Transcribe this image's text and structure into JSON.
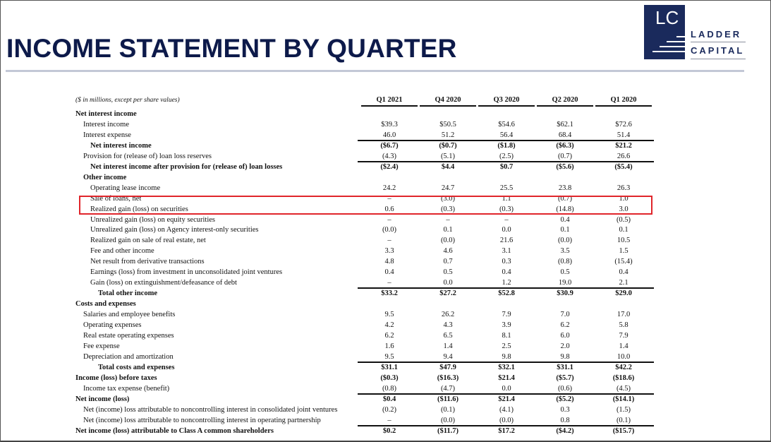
{
  "title": "INCOME STATEMENT BY QUARTER",
  "logo": {
    "mark": "LC",
    "line1": "LADDER",
    "line2": "CAPITAL",
    "brand_color": "#1a2a5c"
  },
  "table": {
    "units_note": "($ in millions, except per share values)",
    "columns": [
      "Q1 2021",
      "Q4 2020",
      "Q3 2020",
      "Q2 2020",
      "Q1 2020"
    ],
    "rows": [
      {
        "label": "Net interest income",
        "style": "section",
        "values": [
          "",
          "",
          "",
          "",
          ""
        ]
      },
      {
        "label": "Interest income",
        "style": "item",
        "values": [
          "$39.3",
          "$50.5",
          "$54.6",
          "$62.1",
          "$72.6"
        ]
      },
      {
        "label": "Interest expense",
        "style": "item",
        "values": [
          "46.0",
          "51.2",
          "56.4",
          "68.4",
          "51.4"
        ]
      },
      {
        "label": "Net interest income",
        "style": "subtotal",
        "values": [
          "($6.7)",
          "($0.7)",
          "($1.8)",
          "($6.3)",
          "$21.2"
        ]
      },
      {
        "label": "Provision for (release of) loan loss reserves",
        "style": "item",
        "values": [
          "(4.3)",
          "(5.1)",
          "(2.5)",
          "(0.7)",
          "26.6"
        ]
      },
      {
        "label": "Net interest income after provision for (release of) loan losses",
        "style": "subtotal",
        "values": [
          "($2.4)",
          "$4.4",
          "$0.7",
          "($5.6)",
          "($5.4)"
        ]
      },
      {
        "label": "Other income",
        "style": "section-indent",
        "values": [
          "",
          "",
          "",
          "",
          ""
        ]
      },
      {
        "label": "Operating lease income",
        "style": "item2",
        "values": [
          "24.2",
          "24.7",
          "25.5",
          "23.8",
          "26.3"
        ]
      },
      {
        "label": "Sale of loans, net",
        "style": "item2",
        "values": [
          "–",
          "(3.0)",
          "1.1",
          "(0.7)",
          "1.0"
        ]
      },
      {
        "label": "Realized gain (loss) on securities",
        "style": "item2",
        "values": [
          "0.6",
          "(0.3)",
          "(0.3)",
          "(14.8)",
          "3.0"
        ]
      },
      {
        "label": "Unrealized gain (loss) on equity securities",
        "style": "item2",
        "values": [
          "–",
          "–",
          "–",
          "0.4",
          "(0.5)"
        ]
      },
      {
        "label": "Unrealized gain (loss) on Agency interest-only securities",
        "style": "item2",
        "values": [
          "(0.0)",
          "0.1",
          "0.0",
          "0.1",
          "0.1"
        ]
      },
      {
        "label": "Realized gain on sale of real estate, net",
        "style": "item2",
        "values": [
          "–",
          "(0.0)",
          "21.6",
          "(0.0)",
          "10.5"
        ]
      },
      {
        "label": "Fee and other income",
        "style": "item2",
        "values": [
          "3.3",
          "4.6",
          "3.1",
          "3.5",
          "1.5"
        ]
      },
      {
        "label": "Net result from derivative transactions",
        "style": "item2",
        "values": [
          "4.8",
          "0.7",
          "0.3",
          "(0.8)",
          "(15.4)"
        ]
      },
      {
        "label": "Earnings (loss) from investment in unconsolidated joint ventures",
        "style": "item2",
        "values": [
          "0.4",
          "0.5",
          "0.4",
          "0.5",
          "0.4"
        ]
      },
      {
        "label": "Gain (loss) on extinguishment/defeasance of debt",
        "style": "item2",
        "values": [
          "–",
          "0.0",
          "1.2",
          "19.0",
          "2.1"
        ]
      },
      {
        "label": "Total other income",
        "style": "subtotal",
        "values": [
          "$33.2",
          "$27.2",
          "$52.8",
          "$30.9",
          "$29.0"
        ]
      },
      {
        "label": "Costs and expenses",
        "style": "section",
        "values": [
          "",
          "",
          "",
          "",
          ""
        ]
      },
      {
        "label": "Salaries and employee benefits",
        "style": "item",
        "values": [
          "9.5",
          "26.2",
          "7.9",
          "7.0",
          "17.0"
        ]
      },
      {
        "label": "Operating expenses",
        "style": "item",
        "values": [
          "4.2",
          "4.3",
          "3.9",
          "6.2",
          "5.8"
        ]
      },
      {
        "label": "Real estate operating expenses",
        "style": "item",
        "values": [
          "6.2",
          "6.5",
          "8.1",
          "6.0",
          "7.9"
        ]
      },
      {
        "label": "Fee expense",
        "style": "item",
        "values": [
          "1.6",
          "1.4",
          "2.5",
          "2.0",
          "1.4"
        ]
      },
      {
        "label": "Depreciation and amortization",
        "style": "item",
        "values": [
          "9.5",
          "9.4",
          "9.8",
          "9.8",
          "10.0"
        ]
      },
      {
        "label": "Total costs and expenses",
        "style": "subtotal",
        "values": [
          "$31.1",
          "$47.9",
          "$32.1",
          "$31.1",
          "$42.2"
        ]
      },
      {
        "label": "Income (loss) before taxes",
        "style": "section",
        "values": [
          "($0.3)",
          "($16.3)",
          "$21.4",
          "($5.7)",
          "($18.6)"
        ]
      },
      {
        "label": "Income tax expense (benefit)",
        "style": "item",
        "values": [
          "(0.8)",
          "(4.7)",
          "0.0",
          "(0.6)",
          "(4.5)"
        ]
      },
      {
        "label": "Net income (loss)",
        "style": "section",
        "values": [
          "$0.4",
          "($11.6)",
          "$21.4",
          "($5.2)",
          "($14.1)"
        ]
      },
      {
        "label": "Net (income) loss attributable to noncontrolling interest in consolidated joint ventures",
        "style": "item",
        "values": [
          "(0.2)",
          "(0.1)",
          "(4.1)",
          "0.3",
          "(1.5)"
        ]
      },
      {
        "label": "Net (income) loss attributable to noncontrolling interest in operating partnership",
        "style": "item",
        "values": [
          "–",
          "(0.0)",
          "(0.0)",
          "0.8",
          "(0.1)"
        ]
      },
      {
        "label": "Net income (loss) attributable to Class A common shareholders",
        "style": "section",
        "values": [
          "$0.2",
          "($11.7)",
          "$17.2",
          "($4.2)",
          "($15.7)"
        ]
      }
    ]
  },
  "highlight": {
    "color": "#e0252b",
    "rows": [
      "Sale of loans, net",
      "Realized gain (loss) on securities"
    ]
  }
}
